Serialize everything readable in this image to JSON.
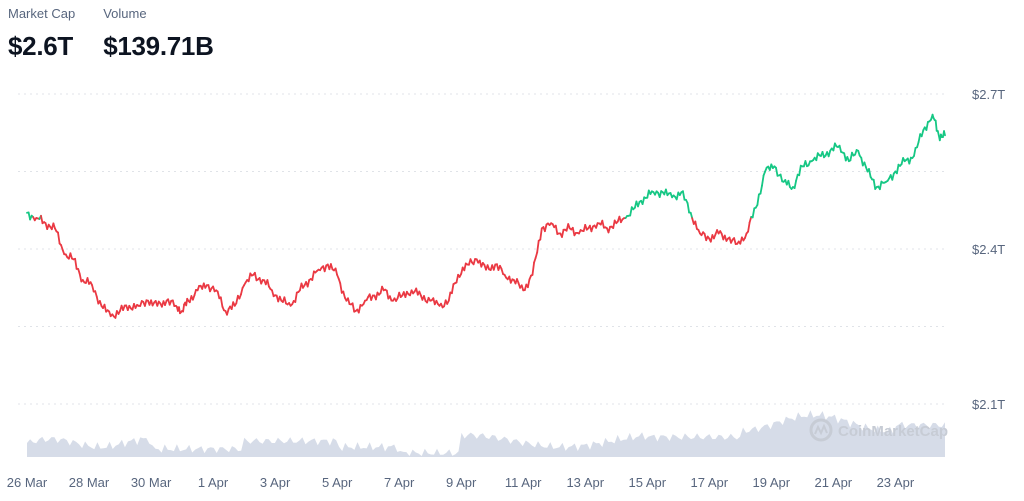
{
  "header": {
    "market_cap_label": "Market Cap",
    "market_cap_value": "$2.6T",
    "volume_label": "Volume",
    "volume_value": "$139.71B"
  },
  "watermark": "CoinMarketCap",
  "colors": {
    "up": "#16c784",
    "down": "#ea3943",
    "volume": "#cfd6e4",
    "grid": "#e0e3e8"
  },
  "chart_data": {
    "type": "line",
    "x_tick_labels": [
      "26 Mar",
      "28 Mar",
      "30 Mar",
      "1 Apr",
      "3 Apr",
      "5 Apr",
      "7 Apr",
      "9 Apr",
      "11 Apr",
      "13 Apr",
      "15 Apr",
      "17 Apr",
      "19 Apr",
      "21 Apr",
      "23 Apr"
    ],
    "y_tick_labels": [
      "$2.7T",
      "$2.4T",
      "$2.1T"
    ],
    "ylim": [
      2.1,
      2.7
    ],
    "x_range_days": [
      0,
      29.6
    ],
    "baseline_value": 2.46,
    "grid": true,
    "series": [
      {
        "kind": "market_cap",
        "points": [
          [
            0.0,
            2.47
          ],
          [
            0.3,
            2.46
          ],
          [
            0.6,
            2.45
          ],
          [
            0.9,
            2.44
          ],
          [
            1.2,
            2.39
          ],
          [
            1.5,
            2.38
          ],
          [
            1.8,
            2.34
          ],
          [
            2.1,
            2.33
          ],
          [
            2.4,
            2.29
          ],
          [
            2.7,
            2.27
          ],
          [
            3.0,
            2.28
          ],
          [
            3.3,
            2.29
          ],
          [
            3.6,
            2.29
          ],
          [
            3.9,
            2.3
          ],
          [
            4.2,
            2.29
          ],
          [
            4.5,
            2.3
          ],
          [
            4.8,
            2.29
          ],
          [
            5.0,
            2.28
          ],
          [
            5.2,
            2.3
          ],
          [
            5.5,
            2.32
          ],
          [
            5.8,
            2.33
          ],
          [
            6.1,
            2.32
          ],
          [
            6.4,
            2.28
          ],
          [
            6.7,
            2.29
          ],
          [
            7.0,
            2.33
          ],
          [
            7.3,
            2.35
          ],
          [
            7.6,
            2.34
          ],
          [
            7.9,
            2.32
          ],
          [
            8.2,
            2.3
          ],
          [
            8.5,
            2.29
          ],
          [
            8.8,
            2.32
          ],
          [
            9.1,
            2.34
          ],
          [
            9.4,
            2.36
          ],
          [
            9.7,
            2.37
          ],
          [
            10.0,
            2.35
          ],
          [
            10.3,
            2.3
          ],
          [
            10.6,
            2.28
          ],
          [
            10.9,
            2.3
          ],
          [
            11.2,
            2.31
          ],
          [
            11.5,
            2.32
          ],
          [
            11.8,
            2.3
          ],
          [
            12.1,
            2.31
          ],
          [
            12.4,
            2.32
          ],
          [
            12.7,
            2.31
          ],
          [
            13.0,
            2.3
          ],
          [
            13.3,
            2.29
          ],
          [
            13.6,
            2.3
          ],
          [
            13.9,
            2.35
          ],
          [
            14.2,
            2.37
          ],
          [
            14.5,
            2.38
          ],
          [
            14.8,
            2.36
          ],
          [
            15.1,
            2.37
          ],
          [
            15.4,
            2.35
          ],
          [
            15.7,
            2.34
          ],
          [
            16.0,
            2.32
          ],
          [
            16.3,
            2.35
          ],
          [
            16.6,
            2.44
          ],
          [
            16.9,
            2.45
          ],
          [
            17.2,
            2.43
          ],
          [
            17.5,
            2.44
          ],
          [
            17.8,
            2.43
          ],
          [
            18.1,
            2.44
          ],
          [
            18.4,
            2.45
          ],
          [
            18.7,
            2.44
          ],
          [
            19.0,
            2.45
          ],
          [
            19.3,
            2.46
          ],
          [
            19.6,
            2.48
          ],
          [
            19.9,
            2.5
          ],
          [
            20.2,
            2.51
          ],
          [
            20.5,
            2.51
          ],
          [
            20.8,
            2.5
          ],
          [
            21.1,
            2.51
          ],
          [
            21.4,
            2.47
          ],
          [
            21.7,
            2.43
          ],
          [
            22.0,
            2.42
          ],
          [
            22.3,
            2.43
          ],
          [
            22.6,
            2.42
          ],
          [
            22.9,
            2.41
          ],
          [
            23.2,
            2.43
          ],
          [
            23.5,
            2.48
          ],
          [
            23.8,
            2.55
          ],
          [
            24.1,
            2.56
          ],
          [
            24.4,
            2.53
          ],
          [
            24.7,
            2.52
          ],
          [
            25.0,
            2.56
          ],
          [
            25.3,
            2.57
          ],
          [
            25.6,
            2.58
          ],
          [
            25.9,
            2.59
          ],
          [
            26.2,
            2.6
          ],
          [
            26.5,
            2.57
          ],
          [
            26.8,
            2.59
          ],
          [
            27.1,
            2.55
          ],
          [
            27.4,
            2.52
          ],
          [
            27.7,
            2.53
          ],
          [
            28.0,
            2.55
          ],
          [
            28.3,
            2.57
          ],
          [
            28.6,
            2.58
          ],
          [
            28.9,
            2.63
          ],
          [
            29.2,
            2.66
          ],
          [
            29.4,
            2.62
          ],
          [
            29.6,
            2.62
          ]
        ]
      }
    ]
  }
}
